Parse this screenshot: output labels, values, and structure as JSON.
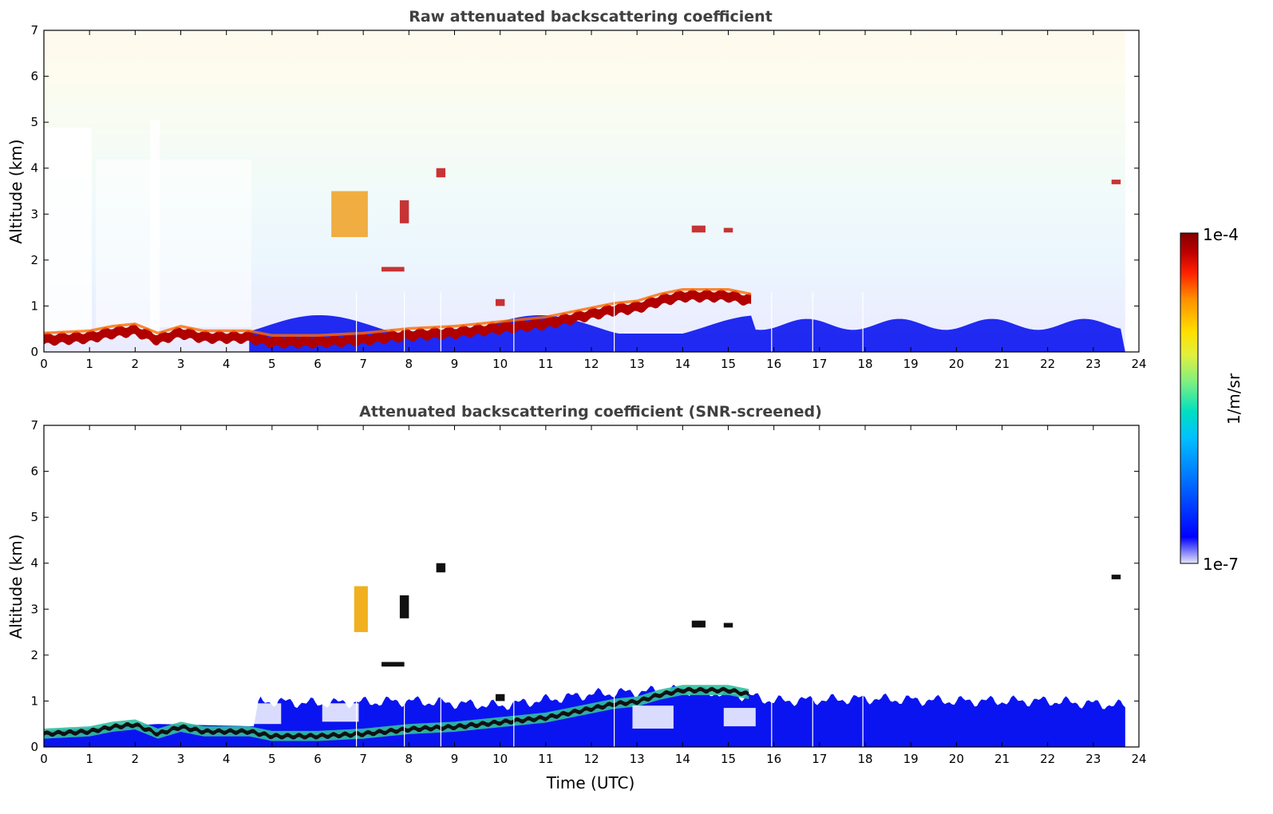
{
  "chart_data": [
    {
      "type": "heatmap",
      "title": "Raw attenuated backscattering coefficient",
      "xlabel": "",
      "ylabel": "Altitude (km)",
      "xlim": [
        0,
        24
      ],
      "ylim": [
        0,
        7
      ],
      "x_ticks": [
        "0",
        "1",
        "2",
        "3",
        "4",
        "5",
        "6",
        "7",
        "8",
        "9",
        "10",
        "11",
        "12",
        "13",
        "14",
        "15",
        "16",
        "17",
        "18",
        "19",
        "20",
        "21",
        "22",
        "23",
        "24"
      ],
      "y_ticks": [
        "0",
        "1",
        "2",
        "3",
        "4",
        "5",
        "6",
        "7"
      ],
      "data_end_time": 23.7,
      "boundary_layer_top_km": [
        [
          0,
          0.3
        ],
        [
          1,
          0.35
        ],
        [
          1.5,
          0.45
        ],
        [
          2,
          0.5
        ],
        [
          2.5,
          0.3
        ],
        [
          3,
          0.45
        ],
        [
          3.5,
          0.35
        ],
        [
          4.5,
          0.35
        ],
        [
          5,
          0.25
        ],
        [
          6,
          0.25
        ],
        [
          7,
          0.3
        ],
        [
          8,
          0.4
        ],
        [
          9,
          0.45
        ],
        [
          10,
          0.55
        ],
        [
          11,
          0.65
        ],
        [
          12,
          0.85
        ],
        [
          12.5,
          0.95
        ],
        [
          13,
          1.0
        ],
        [
          13.5,
          1.15
        ],
        [
          14,
          1.25
        ],
        [
          15,
          1.25
        ],
        [
          15.5,
          1.15
        ]
      ],
      "elevated_features": [
        {
          "t0": 6.3,
          "t1": 7.1,
          "alt0": 2.5,
          "alt1": 3.5
        },
        {
          "t0": 7.8,
          "t1": 8.0,
          "alt0": 2.8,
          "alt1": 3.3
        },
        {
          "t0": 8.6,
          "t1": 8.8,
          "alt0": 3.8,
          "alt1": 4.0
        },
        {
          "t0": 7.4,
          "t1": 7.9,
          "alt0": 1.75,
          "alt1": 1.85
        },
        {
          "t0": 9.9,
          "t1": 10.1,
          "alt0": 1.0,
          "alt1": 1.15
        },
        {
          "t0": 14.2,
          "t1": 14.5,
          "alt0": 2.6,
          "alt1": 2.75
        },
        {
          "t0": 14.9,
          "t1": 15.1,
          "alt0": 2.6,
          "alt1": 2.7
        },
        {
          "t0": 23.4,
          "t1": 23.6,
          "alt0": 3.65,
          "alt1": 3.75
        }
      ]
    },
    {
      "type": "heatmap",
      "title": "Attenuated backscattering coefficient (SNR-screened)",
      "xlabel": "Time (UTC)",
      "ylabel": "Altitude (km)",
      "xlim": [
        0,
        24
      ],
      "ylim": [
        0,
        7
      ],
      "x_ticks": [
        "0",
        "1",
        "2",
        "3",
        "4",
        "5",
        "6",
        "7",
        "8",
        "9",
        "10",
        "11",
        "12",
        "13",
        "14",
        "15",
        "16",
        "17",
        "18",
        "19",
        "20",
        "21",
        "22",
        "23",
        "24"
      ],
      "y_ticks": [
        "0",
        "1",
        "2",
        "3",
        "4",
        "5",
        "6",
        "7"
      ],
      "data_end_time": 23.7,
      "screened_layer_top_km": [
        [
          0,
          0.35
        ],
        [
          2.5,
          0.5
        ],
        [
          4.6,
          0.45
        ],
        [
          4.7,
          1.0
        ],
        [
          6,
          0.95
        ],
        [
          8,
          1.0
        ],
        [
          10,
          0.9
        ],
        [
          12,
          1.15
        ],
        [
          14,
          1.25
        ],
        [
          15.5,
          1.1
        ],
        [
          16,
          1.0
        ],
        [
          18,
          1.05
        ],
        [
          20,
          1.0
        ],
        [
          22,
          1.0
        ],
        [
          23.7,
          0.9
        ]
      ]
    }
  ],
  "colorbar": {
    "label": "1/m/sr",
    "max_label": "1e-4",
    "min_label": "1e-7",
    "scale": "log",
    "colors": [
      "#e6e6fa",
      "#0000ff",
      "#0070ff",
      "#00c0ff",
      "#00e0c0",
      "#80f080",
      "#e0f040",
      "#ffe000",
      "#ff9000",
      "#ff2000",
      "#c00000",
      "#800000"
    ]
  }
}
